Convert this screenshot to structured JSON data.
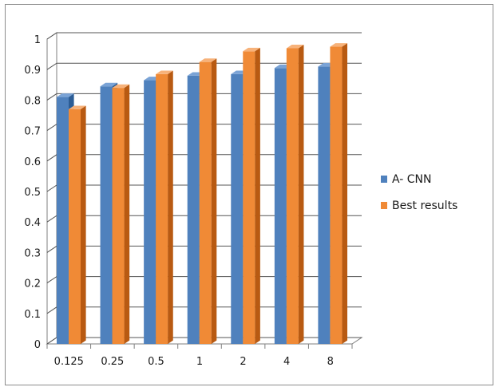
{
  "chart_data": {
    "type": "bar",
    "title": "",
    "xlabel": "",
    "ylabel": "",
    "categories": [
      "0.125",
      "0.25",
      "0.5",
      "1",
      "2",
      "4",
      "8"
    ],
    "series": [
      {
        "name": "A- CNN",
        "values": [
          0.81,
          0.845,
          0.865,
          0.88,
          0.885,
          0.905,
          0.91
        ],
        "color": "#4f81bd",
        "side_color": "#2c5d95",
        "top_color": "#7aa3d6"
      },
      {
        "name": "Best results",
        "values": [
          0.77,
          0.84,
          0.885,
          0.925,
          0.96,
          0.97,
          0.975
        ],
        "color": "#f08a36",
        "side_color": "#b85a12",
        "top_color": "#f7b27a"
      }
    ],
    "ylim": [
      0,
      1
    ],
    "yticks": [
      "0",
      "0.1",
      "0.2",
      "0.3",
      "0.4",
      "0.5",
      "0.6",
      "0.7",
      "0.8",
      "0.9",
      "1"
    ],
    "grid": true,
    "legend_position": "right",
    "style": "3d-clustered-column"
  }
}
